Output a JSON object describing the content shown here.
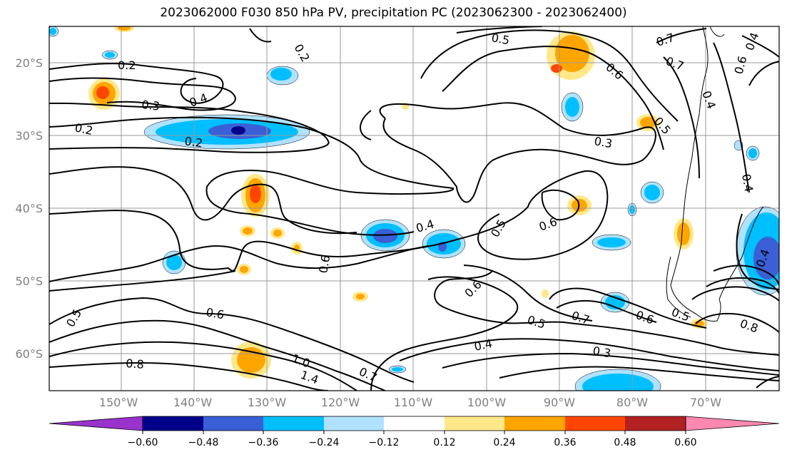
{
  "title": "2023062000 F030 850 hPa PV, precipitation PC (2023062300 - 2023062400)",
  "lon_labels": [
    "150°W",
    "140°W",
    "130°W",
    "120°W",
    "110°W",
    "100°W",
    "90°W",
    "80°W",
    "70°W"
  ],
  "lat_labels": [
    "20°S",
    "30°S",
    "40°S",
    "50°S",
    "60°S"
  ],
  "colorbar": {
    "labels": [
      "-0.60",
      "-0.48",
      "-0.36",
      "-0.24",
      "-0.12",
      "0.12",
      "0.24",
      "0.36",
      "0.48",
      "0.60"
    ],
    "colors": [
      "#9933cc",
      "#00008b",
      "#3a5fd6",
      "#00bfff",
      "#b0e2ff",
      "#ffffff",
      "#ffe88a",
      "#ffa500",
      "#ff4500",
      "#b22222",
      "#ff88b0"
    ]
  },
  "contour_labels": [
    "0.2",
    "0.2",
    "0.2",
    "0.2",
    "0.3",
    "0.4",
    "0.5",
    "0.7",
    "0.7",
    "0.6",
    "0.5",
    "0.3",
    "0.4",
    "0.4",
    "0.5",
    "0.6",
    "0.6",
    "0.6",
    "0.6",
    "0.6",
    "0.5",
    "0.7",
    "0.6",
    "0.8",
    "0.4",
    "0.3",
    "0.5",
    "0.8",
    "1.0",
    "1.4",
    "0.7",
    "0.4",
    "0.4",
    "0.4",
    "0.5"
  ],
  "shading_colors": {
    "neg_light": "#b0e2ff",
    "neg_mid": "#00bfff",
    "neg_strong": "#3a5fd6",
    "neg_max": "#00008b",
    "pos_light": "#ffe88a",
    "pos_mid": "#ffa500",
    "pos_strong": "#ff4500"
  }
}
